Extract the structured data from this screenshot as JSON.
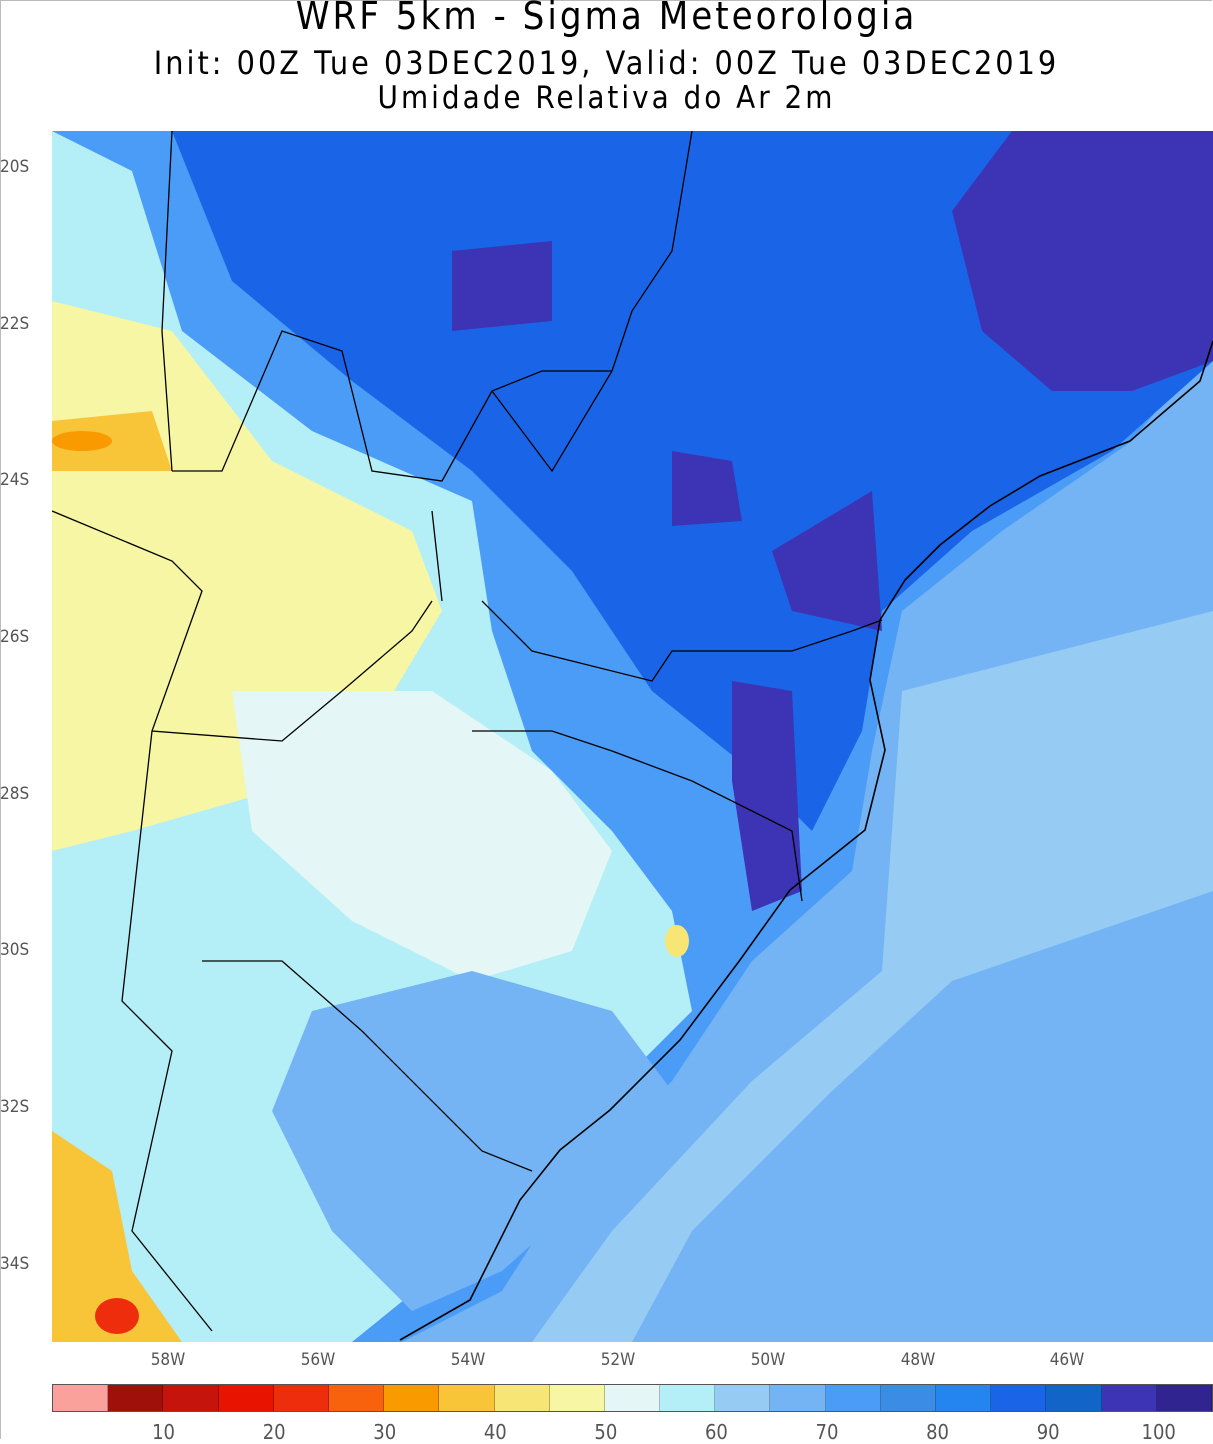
{
  "title": "WRF 5km - Sigma Meteorologia",
  "subtitle": "Init: 00Z Tue 03DEC2019, Valid: 00Z Tue 03DEC2019",
  "variable": "Umidade Relativa do Ar 2m",
  "lat_labels": [
    "20S",
    "22S",
    "24S",
    "26S",
    "28S",
    "30S",
    "32S",
    "34S"
  ],
  "lon_labels": [
    "58W",
    "56W",
    "54W",
    "52W",
    "50W",
    "48W",
    "46W"
  ],
  "colorbar": {
    "ticks": [
      "10",
      "20",
      "30",
      "40",
      "50",
      "60",
      "70",
      "80",
      "90",
      "100"
    ],
    "colors": [
      "#f9a19a",
      "#a0100a",
      "#c4140c",
      "#e81300",
      "#ee2d0d",
      "#f8620d",
      "#f99a00",
      "#f8c438",
      "#f7e675",
      "#f7f6a5",
      "#e4f6f5",
      "#b4eef6",
      "#96ccf4",
      "#74b4f4",
      "#4a9cf6",
      "#3a8ce4",
      "#2484f0",
      "#1a64e8",
      "#1264c8",
      "#3c34b4",
      "#302490"
    ]
  }
}
